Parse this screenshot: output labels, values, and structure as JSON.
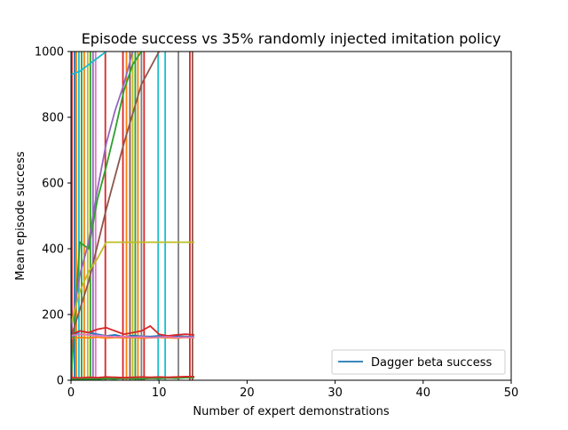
{
  "chart_data": {
    "type": "line",
    "title": "Episode success vs 35% randomly injected imitation policy",
    "xlabel": "Number of expert demonstrations",
    "ylabel": "Mean episode success",
    "xlim": [
      0,
      50
    ],
    "ylim": [
      0,
      1000
    ],
    "xticks": [
      "0",
      "10",
      "20",
      "30",
      "40",
      "50"
    ],
    "yticks": [
      "0",
      "200",
      "400",
      "600",
      "800",
      "1000"
    ],
    "grid": false,
    "legend": {
      "placement": "lower right",
      "entries": [
        "Dagger beta success"
      ]
    },
    "series": [
      {
        "name": "Dagger beta success",
        "color": "#1f77b4",
        "x": [
          0,
          1,
          2,
          3,
          4,
          5,
          6,
          7,
          8,
          9,
          10,
          11,
          12,
          13,
          14
        ],
        "y": [
          130,
          150,
          145,
          140,
          135,
          138,
          132,
          136,
          134,
          133,
          135,
          132,
          134,
          133,
          132
        ]
      },
      {
        "color": "#ff7f0e",
        "x": [
          0,
          1,
          2,
          3,
          4,
          5,
          6,
          7,
          8,
          9,
          10,
          11,
          12,
          13,
          14
        ],
        "y": [
          128,
          130,
          129,
          131,
          128,
          130,
          129,
          130,
          128,
          129,
          130,
          129,
          128,
          130,
          129
        ]
      },
      {
        "color": "#2ca02c",
        "x": [
          0,
          1,
          2,
          3,
          4,
          5,
          6,
          7,
          8
        ],
        "y": [
          0,
          420,
          400,
          550,
          650,
          760,
          880,
          960,
          1000
        ]
      },
      {
        "color": "#d62728",
        "x": [
          0,
          1,
          2,
          3,
          4,
          5,
          6,
          7,
          8,
          9,
          10,
          11,
          12,
          13,
          14
        ],
        "y": [
          140,
          150,
          145,
          155,
          160,
          150,
          140,
          145,
          150,
          165,
          140,
          135,
          138,
          140,
          138
        ]
      },
      {
        "color": "#9467bd",
        "x": [
          0,
          1,
          2,
          3,
          4,
          5,
          6,
          7
        ],
        "y": [
          150,
          320,
          420,
          580,
          720,
          820,
          900,
          1000
        ]
      },
      {
        "color": "#8c564b",
        "x": [
          0,
          2,
          4,
          6,
          8,
          10
        ],
        "y": [
          130,
          300,
          520,
          720,
          900,
          1000
        ]
      },
      {
        "color": "#e377c2",
        "x": [
          0,
          1,
          2,
          3,
          4,
          5,
          6,
          7,
          8,
          9,
          10,
          11,
          12,
          13,
          14
        ],
        "y": [
          135,
          140,
          138,
          136,
          134,
          132,
          133,
          131,
          132,
          130,
          131,
          132,
          130,
          131,
          130
        ]
      },
      {
        "color": "#7f7f7f",
        "x": [
          0,
          1,
          2,
          3,
          4,
          5,
          6,
          7,
          8,
          9,
          10,
          11,
          12,
          13,
          14
        ],
        "y": [
          5,
          6,
          5,
          7,
          6,
          5,
          6,
          7,
          5,
          6,
          7,
          8,
          9,
          10,
          10
        ]
      },
      {
        "color": "#bcbd22",
        "x": [
          0,
          1,
          2,
          3,
          4,
          14
        ],
        "y": [
          170,
          270,
          330,
          370,
          420,
          420
        ]
      },
      {
        "color": "#17becf",
        "x": [
          0,
          1,
          2,
          3,
          4
        ],
        "y": [
          930,
          940,
          960,
          980,
          1000
        ]
      },
      {
        "color": "#2ca02c",
        "x": [
          0,
          1,
          2,
          3,
          4,
          5,
          6,
          7,
          8,
          9,
          10,
          11,
          12,
          13,
          14
        ],
        "y": [
          2,
          3,
          4,
          3,
          5,
          4,
          6,
          5,
          4,
          6,
          5,
          7,
          6,
          8,
          8
        ]
      },
      {
        "color": "#d62728",
        "x": [
          0,
          1,
          2,
          3,
          4,
          5,
          6,
          7,
          8,
          9,
          10,
          11,
          12,
          13,
          14
        ],
        "y": [
          8,
          7,
          9,
          8,
          10,
          9,
          8,
          9,
          10,
          9,
          10,
          9,
          10,
          11,
          11
        ]
      }
    ],
    "spikes": [
      {
        "x": 0.1,
        "color": "#d62728"
      },
      {
        "x": 0.4,
        "color": "#1f77b4"
      },
      {
        "x": 0.6,
        "color": "#ff7f0e"
      },
      {
        "x": 0.9,
        "color": "#17becf"
      },
      {
        "x": 1.2,
        "color": "#2ca02c"
      },
      {
        "x": 1.5,
        "color": "#ff7f0e"
      },
      {
        "x": 1.9,
        "color": "#bcbd22"
      },
      {
        "x": 2.2,
        "color": "#2ca02c"
      },
      {
        "x": 2.5,
        "color": "#9467bd"
      },
      {
        "x": 2.8,
        "color": "#e377c2"
      },
      {
        "x": 3.9,
        "color": "#d62728"
      },
      {
        "x": 5.9,
        "color": "#d62728"
      },
      {
        "x": 6.3,
        "color": "#ff7f0e"
      },
      {
        "x": 6.7,
        "color": "#8c564b"
      },
      {
        "x": 7.0,
        "color": "#bcbd22"
      },
      {
        "x": 7.3,
        "color": "#2ca02c"
      },
      {
        "x": 7.6,
        "color": "#ff7f0e"
      },
      {
        "x": 8.0,
        "color": "#7f7f7f"
      },
      {
        "x": 8.3,
        "color": "#d62728"
      },
      {
        "x": 9.9,
        "color": "#17becf"
      },
      {
        "x": 10.7,
        "color": "#17becf"
      },
      {
        "x": 12.2,
        "color": "#7f7f7f"
      },
      {
        "x": 13.5,
        "color": "#d62728"
      },
      {
        "x": 13.8,
        "color": "#8c564b"
      }
    ]
  }
}
